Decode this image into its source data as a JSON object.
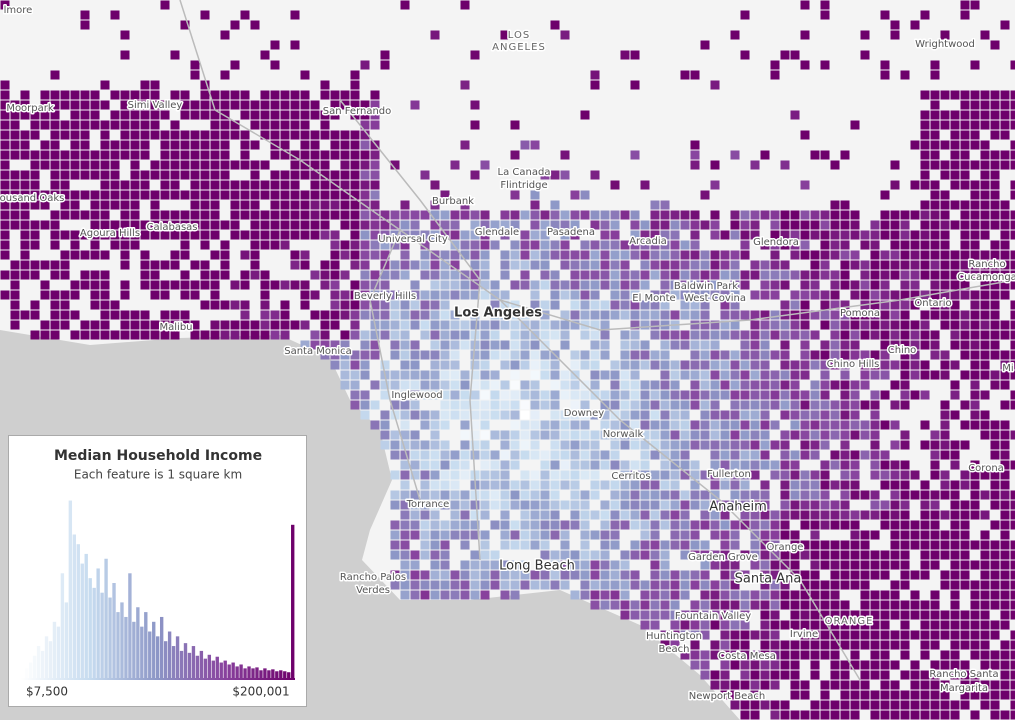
{
  "places": [
    "lmore",
    "LOS",
    "ANGELES",
    "Wrightwood",
    "Moorpark",
    "Simi Valley",
    "San Fernando",
    "La Canada",
    "Flintridge",
    "Burbank",
    "ousand Oaks",
    "Agoura Hills",
    "Calabasas",
    "Universal City",
    "Glendale",
    "Pasadena",
    "Arcadia",
    "Glendora",
    "Rancho",
    "Cucamonga",
    "Baldwin Park",
    "West Covina",
    "El Monte",
    "Ontario",
    "Beverly Hills",
    "Los Angeles",
    "Pomona",
    "Malibu",
    "Santa Monica",
    "Chino",
    "Chino Hills",
    "Mi",
    "Inglewood",
    "Downey",
    "Norwalk",
    "Corona",
    "Cerritos",
    "Fullerton",
    "Torrance",
    "Anaheim",
    "Orange",
    "Garden Grove",
    "Long Beach",
    "Santa Ana",
    "Rancho Palos",
    "Verdes",
    "ORANGE",
    "Fountain Valley",
    "Irvine",
    "Huntington",
    "Beach",
    "Costa Mesa",
    "Rancho Santa",
    "Margarita",
    "Newport Beach"
  ],
  "legend": {
    "title": "Median Household Income",
    "subtitle": "Each feature is 1 square km",
    "min_label": "$7,500",
    "max_label": "$200,001",
    "ramp": [
      "#ffffff",
      "#c6dbef",
      "#8c96c6",
      "#88419d",
      "#6e016b"
    ],
    "ylim": [
      0,
      200
    ],
    "histogram": [
      8,
      12,
      18,
      25,
      35,
      30,
      45,
      40,
      60,
      55,
      110,
      80,
      185,
      150,
      140,
      120,
      130,
      105,
      95,
      115,
      90,
      125,
      85,
      100,
      70,
      80,
      65,
      110,
      60,
      75,
      55,
      70,
      50,
      60,
      45,
      65,
      40,
      50,
      35,
      45,
      30,
      38,
      28,
      35,
      25,
      30,
      22,
      26,
      20,
      24,
      18,
      20,
      16,
      18,
      14,
      16,
      12,
      14,
      12,
      13,
      10,
      12,
      10,
      11,
      9,
      10,
      9,
      8,
      160
    ]
  }
}
